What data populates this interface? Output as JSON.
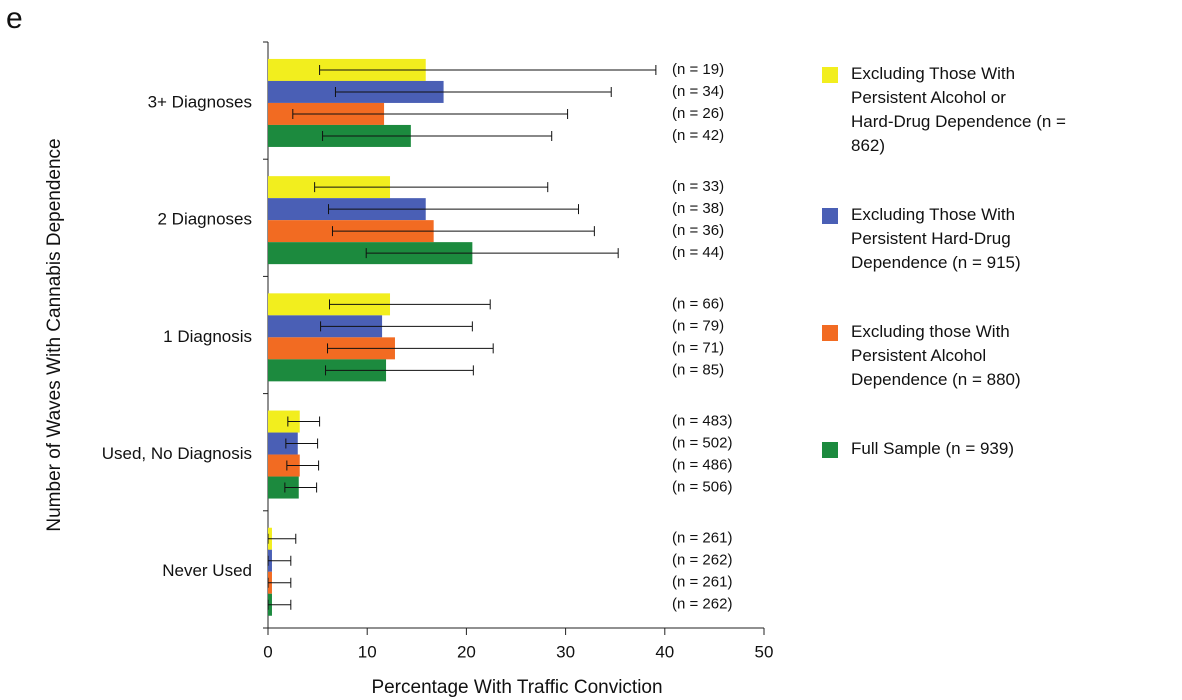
{
  "panel_label": "e",
  "chart_data": {
    "type": "bar",
    "orientation": "horizontal",
    "xlabel": "Percentage With Traffic Conviction",
    "ylabel": "Number of Waves With Cannabis Dependence",
    "categories": [
      "3+ Diagnoses",
      "2 Diagnoses",
      "1 Diagnosis",
      "Used, No Diagnosis",
      "Never Used"
    ],
    "xlim": [
      0,
      50
    ],
    "xticks": [
      0,
      10,
      20,
      30,
      40,
      50
    ],
    "series": [
      {
        "name": "Excluding Those With Persistent Alcohol or Hard-Drug Dependence (n = 862)",
        "color": "#f2ee1e",
        "values": [
          15.9,
          12.3,
          12.3,
          3.2,
          0.4
        ],
        "err_low": [
          5.2,
          4.7,
          6.2,
          2.0,
          0
        ],
        "err_high": [
          39.1,
          28.2,
          22.4,
          5.2,
          2.8
        ],
        "n_labels": [
          "(n = 19)",
          "(n = 33)",
          "(n = 66)",
          "(n = 483)",
          "(n = 261)"
        ]
      },
      {
        "name": "Excluding Those With Persistent Hard-Drug Dependence (n = 915)",
        "color": "#4a5fb5",
        "values": [
          17.7,
          15.9,
          11.5,
          3.0,
          0.4
        ],
        "err_low": [
          6.8,
          6.1,
          5.3,
          1.8,
          0
        ],
        "err_high": [
          34.6,
          31.3,
          20.6,
          5.0,
          2.3
        ],
        "n_labels": [
          "(n = 34)",
          "(n = 38)",
          "(n = 79)",
          "(n = 502)",
          "(n = 262)"
        ]
      },
      {
        "name": "Excluding those With Persistent Alcohol Dependence (n = 880)",
        "color": "#f26b22",
        "values": [
          11.7,
          16.7,
          12.8,
          3.2,
          0.4
        ],
        "err_low": [
          2.5,
          6.5,
          6.0,
          1.9,
          0
        ],
        "err_high": [
          30.2,
          32.9,
          22.7,
          5.1,
          2.3
        ],
        "n_labels": [
          "(n = 26)",
          "(n = 36)",
          "(n = 71)",
          "(n = 486)",
          "(n = 261)"
        ]
      },
      {
        "name": "Full Sample (n = 939)",
        "color": "#1c8a3e",
        "values": [
          14.4,
          20.6,
          11.9,
          3.1,
          0.4
        ],
        "err_low": [
          5.5,
          9.9,
          5.8,
          1.7,
          0
        ],
        "err_high": [
          28.6,
          35.3,
          20.7,
          4.9,
          2.3
        ],
        "n_labels": [
          "(n = 42)",
          "(n = 44)",
          "(n = 85)",
          "(n = 506)",
          "(n = 262)"
        ]
      }
    ]
  }
}
